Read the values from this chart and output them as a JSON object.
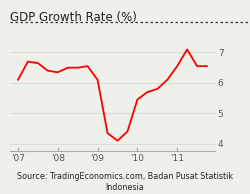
{
  "title": "GDP Growth Rate (%)",
  "source_line1": "Source: TradingEconomics.com, Badan Pusat Statistik",
  "source_line2": "Indonesia",
  "line_color": "#ff0000",
  "bg_color": "#f0f0eb",
  "x_tick_labels": [
    "'07",
    "'08",
    "'09",
    "'10",
    "'11"
  ],
  "x_tick_positions": [
    0,
    4,
    8,
    12,
    16
  ],
  "yticks": [
    4,
    5,
    6,
    7
  ],
  "ylim": [
    3.75,
    7.45
  ],
  "xlim": [
    -0.8,
    19.8
  ],
  "data_x": [
    0,
    1,
    2,
    3,
    4,
    5,
    6,
    7,
    8,
    9,
    10,
    11,
    12,
    13,
    14,
    15,
    16,
    17,
    18,
    19
  ],
  "data_y": [
    6.1,
    6.7,
    6.65,
    6.4,
    6.35,
    6.5,
    6.5,
    6.55,
    6.1,
    4.35,
    4.1,
    4.4,
    5.45,
    5.7,
    5.8,
    6.1,
    6.55,
    7.1,
    6.55,
    6.55
  ],
  "grid_color": "#d8d8d0",
  "spine_color": "#aaaaaa",
  "tick_color": "#555555",
  "title_fontsize": 8.5,
  "tick_fontsize": 6.5,
  "source_fontsize": 5.8
}
